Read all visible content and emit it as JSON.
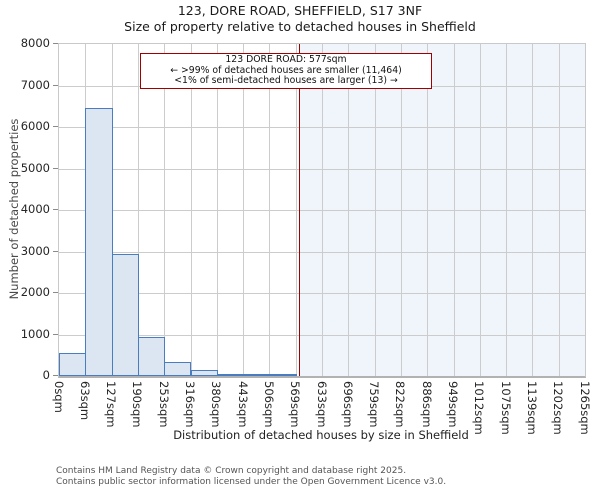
{
  "chart_data": {
    "type": "bar",
    "title": "123, DORE ROAD, SHEFFIELD, S17 3NF",
    "subtitle": "Size of property relative to detached houses in Sheffield",
    "xlabel": "Distribution of detached houses by size in Sheffield",
    "ylabel": "Number of detached properties",
    "x_max_sqm": 1265,
    "x_tick_labels": [
      "0sqm",
      "63sqm",
      "127sqm",
      "190sqm",
      "253sqm",
      "316sqm",
      "380sqm",
      "443sqm",
      "506sqm",
      "569sqm",
      "633sqm",
      "696sqm",
      "759sqm",
      "822sqm",
      "886sqm",
      "949sqm",
      "1012sqm",
      "1075sqm",
      "1139sqm",
      "1202sqm",
      "1265sqm"
    ],
    "values": [
      560,
      6450,
      2950,
      940,
      345,
      135,
      50,
      25,
      10,
      0,
      0,
      0,
      0,
      0,
      0,
      0,
      0,
      0,
      0,
      0
    ],
    "ylim": [
      0,
      8000
    ],
    "ytick_step": 1000,
    "grid": true,
    "legend": "none",
    "marker_sqm": 577,
    "annotation": {
      "line1": "123 DORE ROAD: 577sqm",
      "line2": "← >99% of detached houses are smaller (11,464)",
      "line3": "<1% of semi-detached houses are larger (13) →"
    },
    "colors": {
      "bar_fill": "#dce6f2",
      "bar_edge": "#4a7cc0",
      "marker": "#a00000",
      "grid": "#cccccc",
      "shade_right_of_marker": "#f0f4fb"
    }
  },
  "footer": {
    "line1": "Contains HM Land Registry data © Crown copyright and database right 2025.",
    "line2": "Contains public sector information licensed under the Open Government Licence v3.0."
  }
}
